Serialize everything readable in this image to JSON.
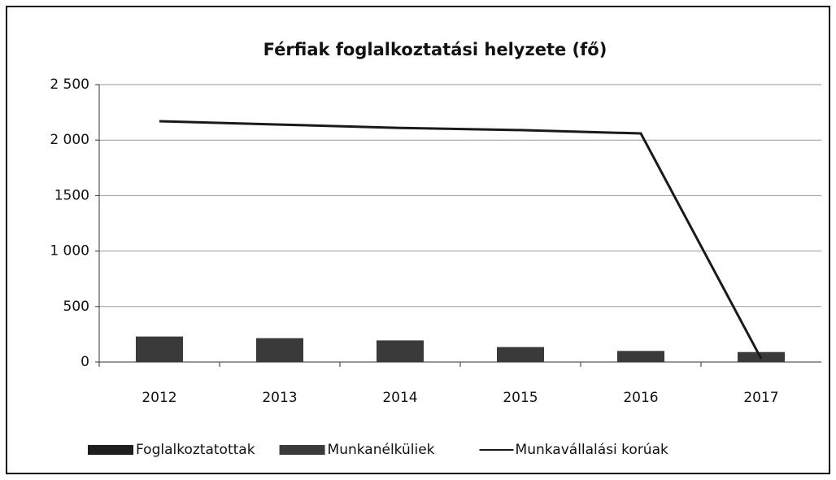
{
  "chart_data": {
    "type": "bar",
    "title": "Férfiak foglalkoztatási helyzete (fő)",
    "categories": [
      "2012",
      "2013",
      "2014",
      "2015",
      "2016",
      "2017"
    ],
    "series": [
      {
        "name": "Foglalkoztatottak",
        "type": "bar",
        "color": "#1e1e1e",
        "values": [
          null,
          null,
          null,
          null,
          null,
          null
        ]
      },
      {
        "name": "Munkanélküliek",
        "type": "bar",
        "color": "#3a3a3a",
        "values": [
          230,
          215,
          195,
          135,
          100,
          90
        ]
      },
      {
        "name": "Munkavállalási korúak",
        "type": "line",
        "color": "#1a1a1a",
        "values": [
          2170,
          2140,
          2110,
          2090,
          2060,
          30
        ]
      }
    ],
    "ylim": [
      0,
      2500
    ],
    "yticks": [
      0,
      500,
      {
        "value": 1000,
        "label": "1 000"
      },
      1500,
      {
        "value": 2000,
        "label": "2 000"
      },
      {
        "value": 2500,
        "label": "2 500"
      }
    ],
    "grid": true,
    "legend": "bottom"
  }
}
